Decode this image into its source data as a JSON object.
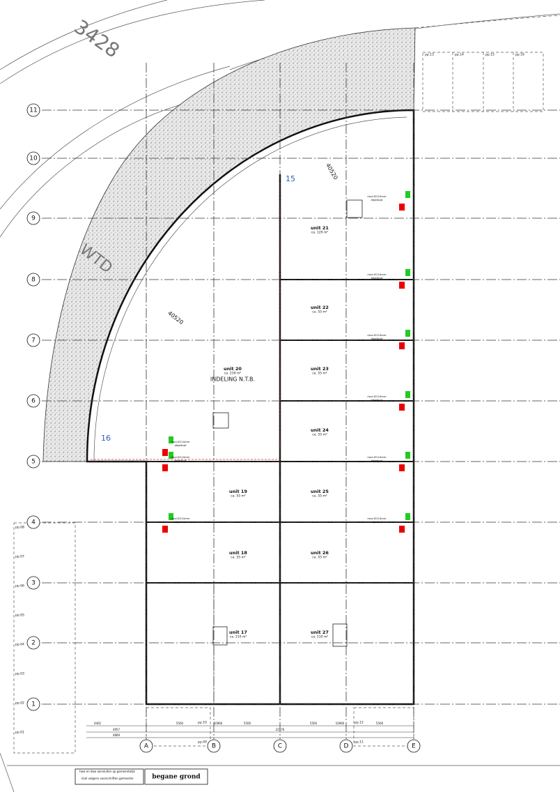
{
  "road_labels": {
    "road_number": "3428",
    "road_name": "WTD"
  },
  "grid": {
    "rows": [
      "1",
      "2",
      "3",
      "4",
      "5",
      "6",
      "7",
      "8",
      "9",
      "10",
      "11"
    ],
    "columns": [
      "A",
      "B",
      "C",
      "D",
      "E"
    ]
  },
  "markers": {
    "north": "15",
    "west": "16"
  },
  "dimensions": {
    "radius_outer": "40520",
    "radius_inner": "40520"
  },
  "units": [
    {
      "name": "unit 21",
      "area": "ca. 129 m²"
    },
    {
      "name": "unit 22",
      "area": "ca. 55 m²"
    },
    {
      "name": "unit 23",
      "area": "ca. 55 m²"
    },
    {
      "name": "unit 24",
      "area": "ca. 55 m²"
    },
    {
      "name": "unit 20",
      "area": "ca. 239 m²"
    },
    {
      "name": "unit 19",
      "area": "ca. 55 m²"
    },
    {
      "name": "unit 25",
      "area": "ca. 55 m²"
    },
    {
      "name": "unit 18",
      "area": "ca. 55 m²"
    },
    {
      "name": "unit 26",
      "area": "ca. 55 m²"
    },
    {
      "name": "unit 17",
      "area": "ca. 110 m²"
    },
    {
      "name": "unit 27",
      "area": "ca. 110 m²"
    }
  ],
  "unit_20_note": "INDELING N.T.B.",
  "drain_label": {
    "line1": "riool Ø110mm",
    "line2": "afgedopt"
  },
  "parking": {
    "top": [
      "pp.13",
      "pp.14",
      "pp.15",
      "pp.16"
    ],
    "left": [
      "pp.08",
      "pp.07",
      "pp.06",
      "pp.05",
      "pp.04",
      "pp.03",
      "pp.02",
      "pp.01"
    ],
    "bottom": [
      "pp.10",
      "pp.09",
      "pp.12",
      "pp.11"
    ]
  },
  "bottom_dimensions": {
    "row1": [
      "4402",
      "5500",
      "10960",
      "5500",
      "5500",
      "10960",
      "5500"
    ],
    "row2": [
      "4957",
      "22176"
    ],
    "row3": [
      "4869"
    ]
  },
  "legend_note": {
    "line1": "hwa en dwa aansluiten op gemeentelijk",
    "line2": "riool volgens voorschriften gemeente"
  },
  "title": "begane grond"
}
